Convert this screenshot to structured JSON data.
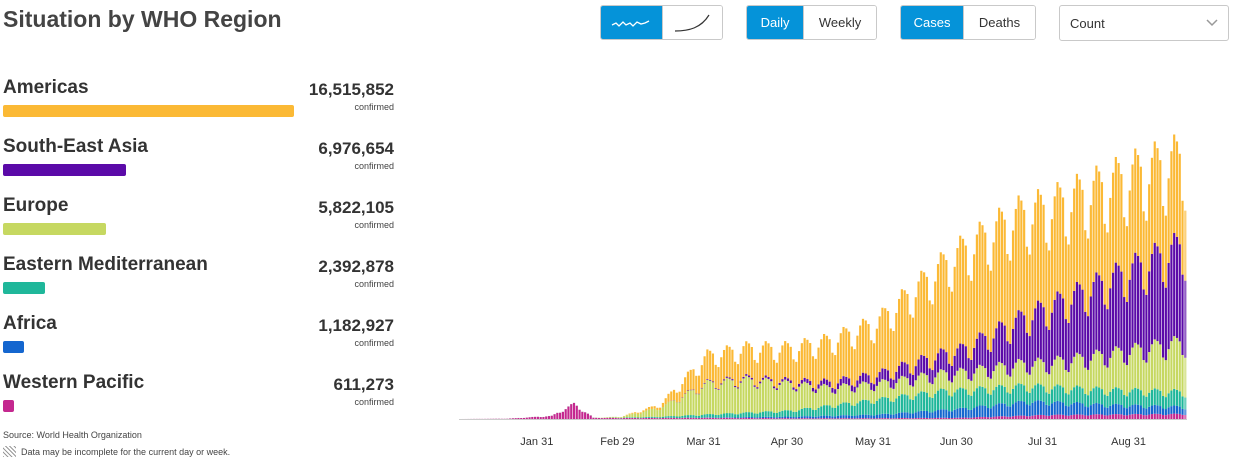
{
  "title": "Situation by WHO Region",
  "controls": {
    "chart_style": [
      {
        "icon": "wavy-line-icon",
        "active": true
      },
      {
        "icon": "cumulative-curve-icon",
        "active": false
      }
    ],
    "period": [
      {
        "label": "Daily",
        "active": true
      },
      {
        "label": "Weekly",
        "active": false
      }
    ],
    "metric": [
      {
        "label": "Cases",
        "active": true
      },
      {
        "label": "Deaths",
        "active": false
      }
    ],
    "scale_select": {
      "value": "Count",
      "icon": "chevron-down-icon"
    }
  },
  "regions": [
    {
      "name": "Americas",
      "count": "16,515,852",
      "value": 16515852,
      "confirmed_label": "confirmed",
      "color": "#fbb935"
    },
    {
      "name": "South-East Asia",
      "count": "6,976,654",
      "value": 6976654,
      "confirmed_label": "confirmed",
      "color": "#5b0aa8"
    },
    {
      "name": "Europe",
      "count": "5,822,105",
      "value": 5822105,
      "confirmed_label": "confirmed",
      "color": "#c6d861"
    },
    {
      "name": "Eastern Mediterranean",
      "count": "2,392,878",
      "value": 2392878,
      "confirmed_label": "confirmed",
      "color": "#1fb79a"
    },
    {
      "name": "Africa",
      "count": "1,182,927",
      "value": 1182927,
      "confirmed_label": "confirmed",
      "color": "#1466cf"
    },
    {
      "name": "Western Pacific",
      "count": "611,273",
      "value": 611273,
      "confirmed_label": "confirmed",
      "color": "#c4288f"
    }
  ],
  "footer": {
    "source": "Source: World Health Organization",
    "note": "Data may be incomplete for the current day or week."
  },
  "chart_data": {
    "type": "bar",
    "stacked": true,
    "x_start": "2020-01-03",
    "x_end": "2020-09-20",
    "x_tick_labels": [
      "Jan 31",
      "Feb 29",
      "Mar 31",
      "Apr 30",
      "May 31",
      "Jun 30",
      "Jul 31",
      "Aug 31"
    ],
    "x_tick_dates": [
      "2020-01-31",
      "2020-02-29",
      "2020-03-31",
      "2020-04-30",
      "2020-05-31",
      "2020-06-30",
      "2020-07-31",
      "2020-08-31"
    ],
    "y_axis_visible": false,
    "ylim": [
      0,
      310000
    ],
    "legend": "left panel",
    "order_bottom_to_top": [
      "Western Pacific",
      "Africa",
      "Eastern Mediterranean",
      "Europe",
      "South-East Asia",
      "Americas"
    ],
    "series": [
      {
        "name": "Western Pacific",
        "color": "#c4288f",
        "points": [
          [
            "2020-01-03",
            0
          ],
          [
            "2020-01-20",
            300
          ],
          [
            "2020-02-05",
            3000
          ],
          [
            "2020-02-13",
            15000
          ],
          [
            "2020-02-20",
            1200
          ],
          [
            "2020-03-01",
            1000
          ],
          [
            "2020-04-01",
            1200
          ],
          [
            "2020-05-01",
            800
          ],
          [
            "2020-06-01",
            800
          ],
          [
            "2020-07-01",
            1200
          ],
          [
            "2020-08-01",
            4000
          ],
          [
            "2020-09-20",
            5000
          ]
        ]
      },
      {
        "name": "Africa",
        "color": "#1466cf",
        "points": [
          [
            "2020-01-03",
            0
          ],
          [
            "2020-03-20",
            0
          ],
          [
            "2020-04-01",
            300
          ],
          [
            "2020-05-01",
            1500
          ],
          [
            "2020-06-01",
            3500
          ],
          [
            "2020-07-01",
            9000
          ],
          [
            "2020-07-25",
            14000
          ],
          [
            "2020-08-20",
            10000
          ],
          [
            "2020-09-20",
            7000
          ]
        ]
      },
      {
        "name": "Eastern Mediterranean",
        "color": "#1fb79a",
        "points": [
          [
            "2020-01-03",
            0
          ],
          [
            "2020-02-25",
            100
          ],
          [
            "2020-03-15",
            1200
          ],
          [
            "2020-04-01",
            3000
          ],
          [
            "2020-05-01",
            6000
          ],
          [
            "2020-06-01",
            15000
          ],
          [
            "2020-06-25",
            19000
          ],
          [
            "2020-07-31",
            15000
          ],
          [
            "2020-09-20",
            15000
          ]
        ]
      },
      {
        "name": "Europe",
        "color": "#c6d861",
        "points": [
          [
            "2020-01-03",
            0
          ],
          [
            "2020-02-20",
            50
          ],
          [
            "2020-03-01",
            1000
          ],
          [
            "2020-03-15",
            9000
          ],
          [
            "2020-04-01",
            31000
          ],
          [
            "2020-04-15",
            33000
          ],
          [
            "2020-05-01",
            27000
          ],
          [
            "2020-05-15",
            18000
          ],
          [
            "2020-06-01",
            16000
          ],
          [
            "2020-07-01",
            18000
          ],
          [
            "2020-08-01",
            24000
          ],
          [
            "2020-09-10",
            45000
          ],
          [
            "2020-09-20",
            50000
          ]
        ]
      },
      {
        "name": "South-East Asia",
        "color": "#5b0aa8",
        "points": [
          [
            "2020-01-03",
            0
          ],
          [
            "2020-03-15",
            0
          ],
          [
            "2020-04-01",
            700
          ],
          [
            "2020-05-01",
            2500
          ],
          [
            "2020-06-01",
            9000
          ],
          [
            "2020-07-01",
            22000
          ],
          [
            "2020-08-01",
            55000
          ],
          [
            "2020-09-20",
            97000
          ]
        ]
      },
      {
        "name": "Americas",
        "color": "#fbb935",
        "points": [
          [
            "2020-01-03",
            0
          ],
          [
            "2020-03-01",
            0
          ],
          [
            "2020-03-15",
            3000
          ],
          [
            "2020-04-01",
            27000
          ],
          [
            "2020-05-01",
            33000
          ],
          [
            "2020-06-01",
            52000
          ],
          [
            "2020-07-01",
            98000
          ],
          [
            "2020-07-20",
            105000
          ],
          [
            "2020-08-01",
            100000
          ],
          [
            "2020-09-01",
            95000
          ],
          [
            "2020-09-20",
            88000
          ]
        ]
      }
    ]
  }
}
